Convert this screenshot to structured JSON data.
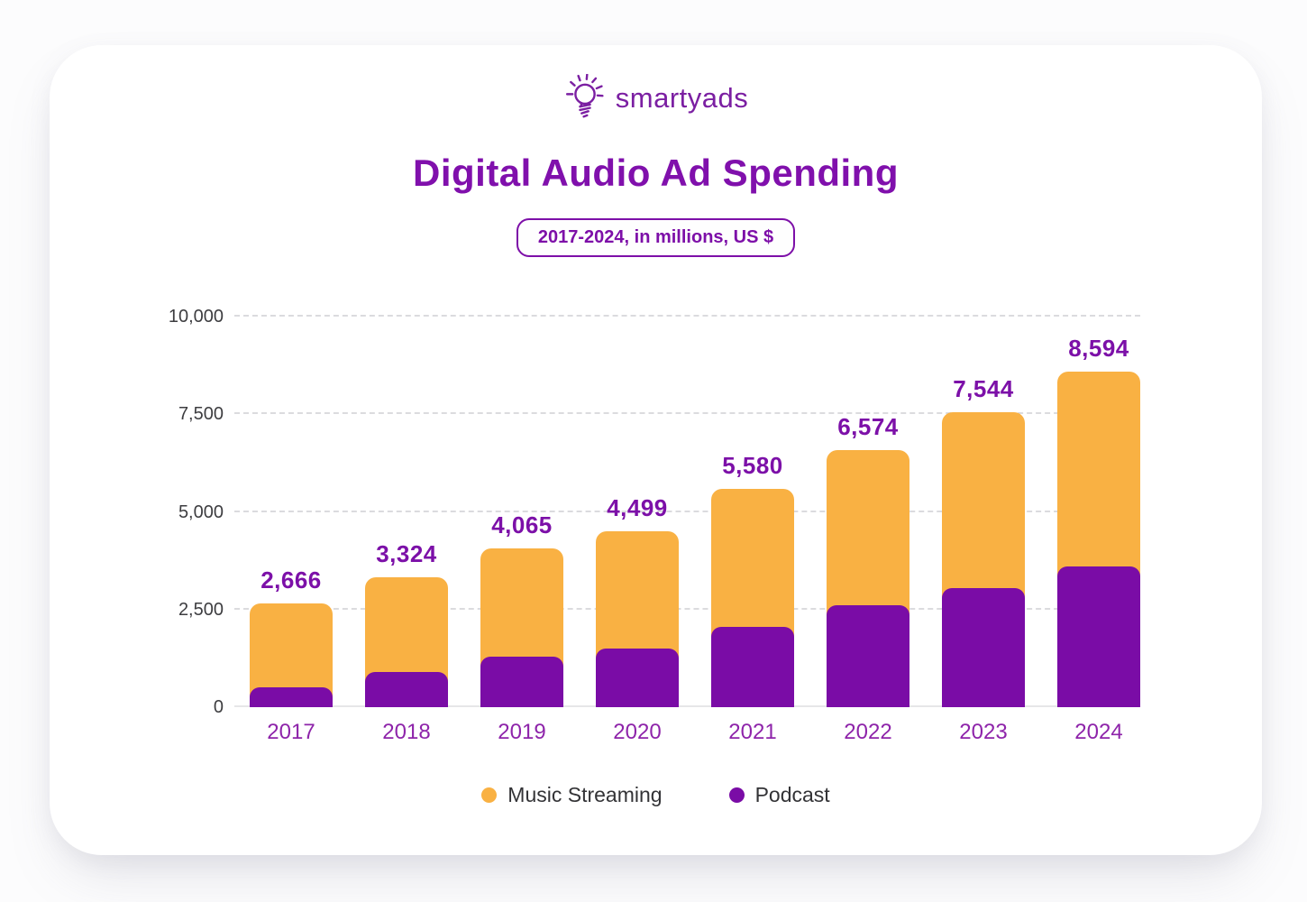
{
  "logo": {
    "brand": "smartyads",
    "icon": "lightbulb-icon",
    "color": "#7b1fa2"
  },
  "header": {
    "title": "Digital Audio Ad Spending",
    "subtitle_badge": "2017-2024, in millions, US $"
  },
  "chart_data": {
    "type": "bar",
    "stacked": true,
    "title": "Digital Audio Ad Spending",
    "subtitle": "2017-2024, in millions, US $",
    "categories": [
      "2017",
      "2018",
      "2019",
      "2020",
      "2021",
      "2022",
      "2023",
      "2024"
    ],
    "series": [
      {
        "name": "Music Streaming",
        "color": "#f9b143",
        "values_estimated_from_bars": [
          2166,
          2424,
          2765,
          2999,
          3530,
          3974,
          4494,
          4994
        ]
      },
      {
        "name": "Podcast",
        "color": "#7a0ca6",
        "values_estimated_from_bars": [
          500,
          900,
          1300,
          1500,
          2050,
          2600,
          3050,
          3600
        ]
      }
    ],
    "totals": [
      2666,
      3324,
      4065,
      4499,
      5580,
      6574,
      7544,
      8594
    ],
    "total_labels": [
      "2,666",
      "3,324",
      "4,065",
      "4,499",
      "5,580",
      "6,574",
      "7,544",
      "8,594"
    ],
    "ylim": [
      0,
      10000
    ],
    "yticks": [
      0,
      2500,
      5000,
      7500,
      10000
    ],
    "ytick_labels": [
      "0",
      "2,500",
      "5,000",
      "7,500",
      "10,000"
    ],
    "grid": "horizontal dashed gridlines",
    "legend_position": "bottom center"
  },
  "legend": {
    "items": [
      {
        "label": "Music Streaming",
        "color": "#f9b143"
      },
      {
        "label": "Podcast",
        "color": "#7a0ca6"
      }
    ]
  },
  "colors": {
    "title_text": "#8010ac",
    "value_label_text": "#7c10a8",
    "year_label_text": "#8e24aa",
    "axis_text": "#3d3d40",
    "music_streaming_bar": "#f9b143",
    "podcast_bar": "#7a0ca6",
    "brand_purple": "#7b1fa2",
    "card_background": "#ffffff"
  }
}
